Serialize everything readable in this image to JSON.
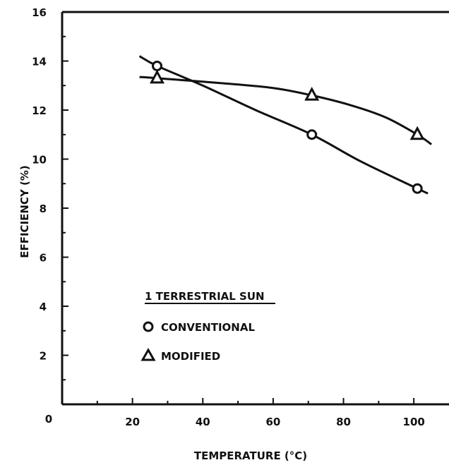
{
  "chart_data": {
    "type": "line",
    "title": "",
    "xlabel": "TEMPERATURE (°C)",
    "ylabel": "EFFICIENCY (%)",
    "xlim": [
      0,
      110
    ],
    "ylim": [
      0,
      16
    ],
    "x_ticks": [
      0,
      20,
      40,
      60,
      80,
      100
    ],
    "y_ticks": [
      2,
      4,
      6,
      8,
      10,
      12,
      14,
      16
    ],
    "origin_label": "0",
    "grid": false,
    "legend": {
      "title": "1 TERRESTRIAL SUN",
      "position": "bottom-left",
      "items": [
        {
          "marker": "circle",
          "label": "CONVENTIONAL"
        },
        {
          "marker": "triangle",
          "label": "MODIFIED"
        }
      ]
    },
    "series": [
      {
        "name": "CONVENTIONAL",
        "marker": "circle",
        "points": [
          [
            27,
            13.8
          ],
          [
            71,
            11.0
          ],
          [
            101,
            8.8
          ]
        ],
        "curve": [
          [
            22,
            14.2
          ],
          [
            27,
            13.8
          ],
          [
            40,
            13.0
          ],
          [
            55,
            12.0
          ],
          [
            71,
            11.0
          ],
          [
            85,
            9.9
          ],
          [
            101,
            8.8
          ],
          [
            104,
            8.6
          ]
        ]
      },
      {
        "name": "MODIFIED",
        "marker": "triangle",
        "points": [
          [
            27,
            13.3
          ],
          [
            71,
            12.6
          ],
          [
            101,
            11.0
          ]
        ],
        "curve": [
          [
            22,
            13.35
          ],
          [
            27,
            13.3
          ],
          [
            45,
            13.1
          ],
          [
            60,
            12.9
          ],
          [
            71,
            12.6
          ],
          [
            82,
            12.2
          ],
          [
            92,
            11.7
          ],
          [
            101,
            11.0
          ],
          [
            105,
            10.6
          ]
        ]
      }
    ]
  }
}
